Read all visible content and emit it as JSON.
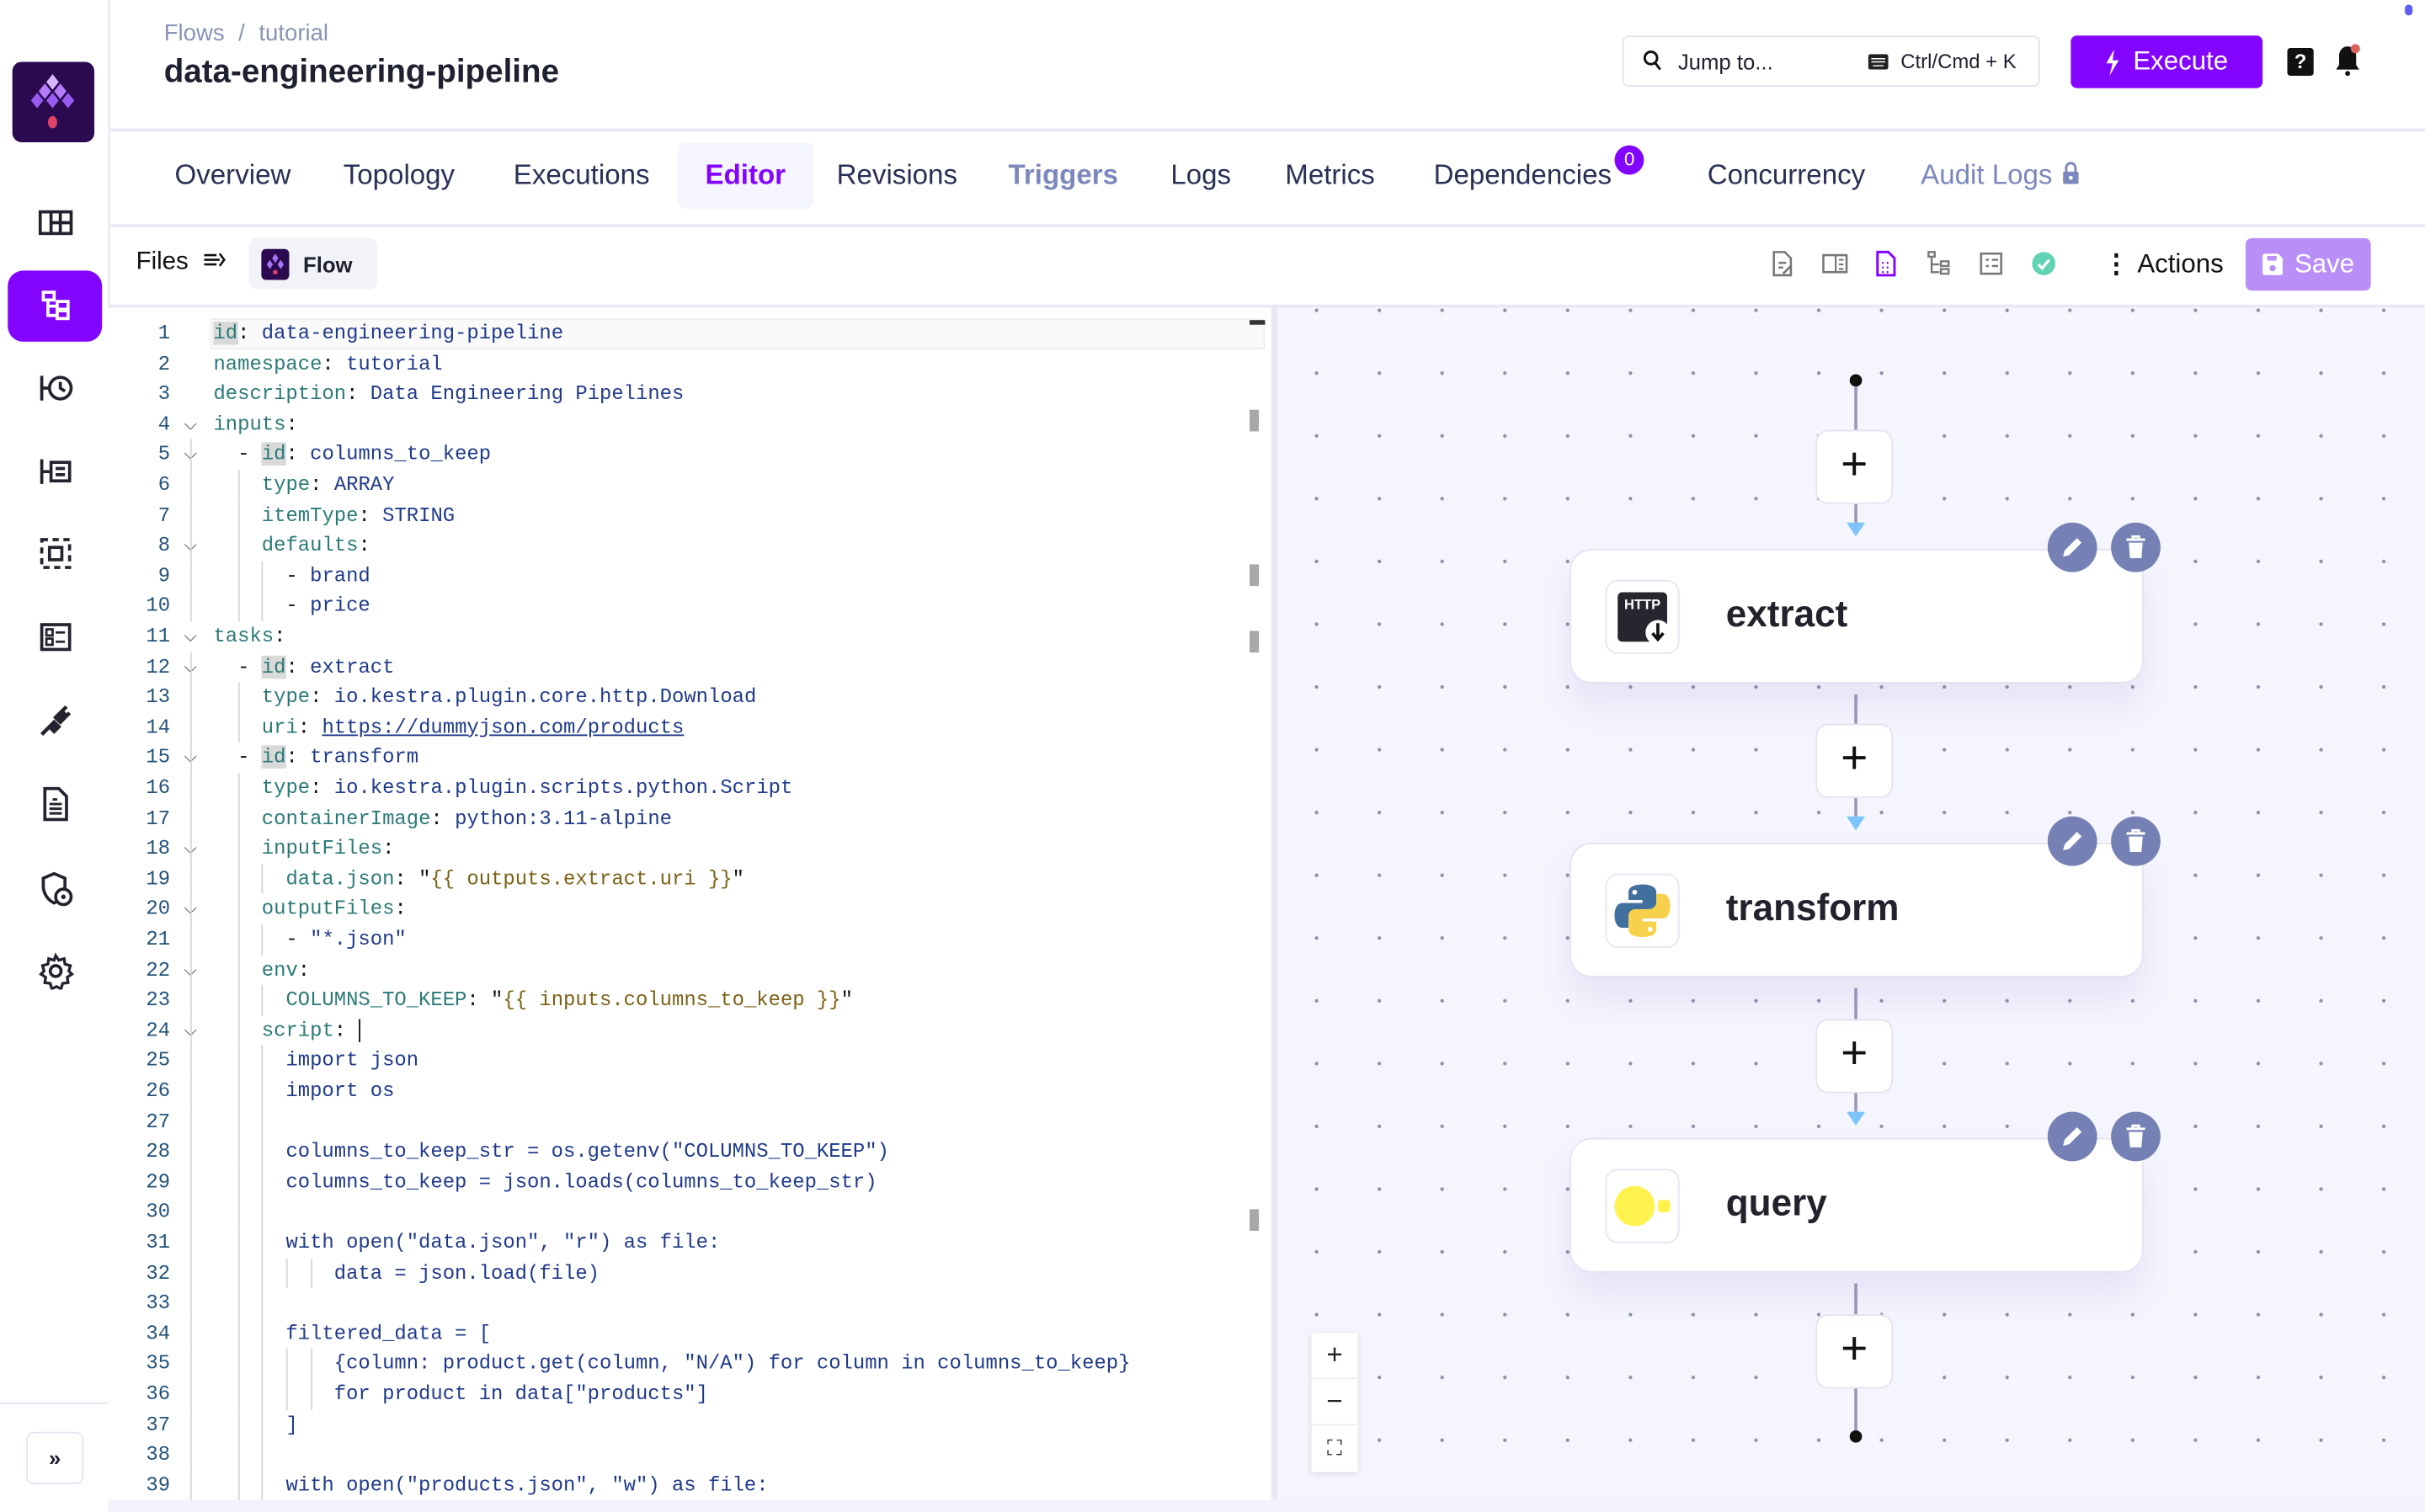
{
  "sidebar": {
    "logo": "kestra-logo",
    "items": [
      {
        "icon": "dashboard-icon",
        "active": false
      },
      {
        "icon": "flows-icon",
        "active": true
      },
      {
        "icon": "executions-icon",
        "active": false
      },
      {
        "icon": "logs-icon",
        "active": false
      },
      {
        "icon": "namespaces-icon",
        "active": false
      },
      {
        "icon": "templates-icon",
        "active": false
      },
      {
        "icon": "plugins-icon",
        "active": false
      },
      {
        "icon": "blueprints-icon",
        "active": false
      },
      {
        "icon": "administration-icon",
        "active": false
      },
      {
        "icon": "settings-icon",
        "active": false
      }
    ],
    "expand_label": "»"
  },
  "header": {
    "breadcrumb": [
      "Flows",
      "tutorial"
    ],
    "breadcrumb_sep": "/",
    "title": "data-engineering-pipeline",
    "jump_placeholder": "Jump to...",
    "jump_shortcut": "Ctrl/Cmd + K",
    "execute_label": "Execute",
    "help_label": "?"
  },
  "tabs": [
    {
      "label": "Overview",
      "state": "normal"
    },
    {
      "label": "Topology",
      "state": "normal"
    },
    {
      "label": "Executions",
      "state": "normal"
    },
    {
      "label": "Editor",
      "state": "active"
    },
    {
      "label": "Revisions",
      "state": "normal"
    },
    {
      "label": "Triggers",
      "state": "muted"
    },
    {
      "label": "Logs",
      "state": "normal"
    },
    {
      "label": "Metrics",
      "state": "normal"
    },
    {
      "label": "Dependencies",
      "state": "normal",
      "badge": "0"
    },
    {
      "label": "Concurrency",
      "state": "normal"
    },
    {
      "label": "Audit Logs",
      "state": "locked"
    }
  ],
  "toolbar": {
    "files_label": "Files",
    "file_tab": "Flow",
    "view_icons": [
      "source-edit-icon",
      "split-view-icon",
      "source-only-icon",
      "topology-view-icon",
      "documentation-view-icon",
      "valid-check-icon"
    ],
    "actions_label": "Actions",
    "save_label": "Save"
  },
  "editor": {
    "current_line": 1,
    "lines": [
      {
        "n": "1",
        "fold": false,
        "t": [
          [
            "kh",
            "id"
          ],
          [
            "p",
            ": "
          ],
          [
            "v",
            "data-engineering-pipeline"
          ]
        ]
      },
      {
        "n": "2",
        "fold": false,
        "t": [
          [
            "k",
            "namespace"
          ],
          [
            "p",
            ": "
          ],
          [
            "v",
            "tutorial"
          ]
        ]
      },
      {
        "n": "3",
        "fold": false,
        "t": [
          [
            "k",
            "description"
          ],
          [
            "p",
            ": "
          ],
          [
            "v",
            "Data Engineering Pipelines"
          ]
        ]
      },
      {
        "n": "4",
        "fold": true,
        "t": [
          [
            "k",
            "inputs"
          ],
          [
            "p",
            ":"
          ]
        ]
      },
      {
        "n": "5",
        "fold": true,
        "t": [
          [
            "p",
            "  - "
          ],
          [
            "kh",
            "id"
          ],
          [
            "p",
            ": "
          ],
          [
            "v",
            "columns_to_keep"
          ]
        ]
      },
      {
        "n": "6",
        "fold": false,
        "t": [
          [
            "p",
            "    "
          ],
          [
            "k",
            "type"
          ],
          [
            "p",
            ": "
          ],
          [
            "v",
            "ARRAY"
          ]
        ]
      },
      {
        "n": "7",
        "fold": false,
        "t": [
          [
            "p",
            "    "
          ],
          [
            "k",
            "itemType"
          ],
          [
            "p",
            ": "
          ],
          [
            "v",
            "STRING"
          ]
        ]
      },
      {
        "n": "8",
        "fold": true,
        "t": [
          [
            "p",
            "    "
          ],
          [
            "k",
            "defaults"
          ],
          [
            "p",
            ":"
          ]
        ]
      },
      {
        "n": "9",
        "fold": false,
        "t": [
          [
            "p",
            "      - "
          ],
          [
            "v",
            "brand"
          ]
        ]
      },
      {
        "n": "10",
        "fold": false,
        "t": [
          [
            "p",
            "      - "
          ],
          [
            "v",
            "price"
          ]
        ]
      },
      {
        "n": "11",
        "fold": true,
        "t": [
          [
            "k",
            "tasks"
          ],
          [
            "p",
            ":"
          ]
        ]
      },
      {
        "n": "12",
        "fold": true,
        "t": [
          [
            "p",
            "  - "
          ],
          [
            "kh",
            "id"
          ],
          [
            "p",
            ": "
          ],
          [
            "v",
            "extract"
          ]
        ]
      },
      {
        "n": "13",
        "fold": false,
        "t": [
          [
            "p",
            "    "
          ],
          [
            "k",
            "type"
          ],
          [
            "p",
            ": "
          ],
          [
            "v",
            "io.kestra.plugin.core.http.Download"
          ]
        ]
      },
      {
        "n": "14",
        "fold": false,
        "t": [
          [
            "p",
            "    "
          ],
          [
            "k",
            "uri"
          ],
          [
            "p",
            ": "
          ],
          [
            "u",
            "https://dummyjson.com/products"
          ]
        ]
      },
      {
        "n": "15",
        "fold": true,
        "t": [
          [
            "p",
            "  - "
          ],
          [
            "kh",
            "id"
          ],
          [
            "p",
            ": "
          ],
          [
            "v",
            "transform"
          ]
        ]
      },
      {
        "n": "16",
        "fold": false,
        "t": [
          [
            "p",
            "    "
          ],
          [
            "k",
            "type"
          ],
          [
            "p",
            ": "
          ],
          [
            "v",
            "io.kestra.plugin.scripts.python.Script"
          ]
        ]
      },
      {
        "n": "17",
        "fold": false,
        "t": [
          [
            "p",
            "    "
          ],
          [
            "k",
            "containerImage"
          ],
          [
            "p",
            ": "
          ],
          [
            "v",
            "python:3.11-alpine"
          ]
        ]
      },
      {
        "n": "18",
        "fold": true,
        "t": [
          [
            "p",
            "    "
          ],
          [
            "k",
            "inputFiles"
          ],
          [
            "p",
            ":"
          ]
        ]
      },
      {
        "n": "19",
        "fold": false,
        "t": [
          [
            "p",
            "      "
          ],
          [
            "k",
            "data.json"
          ],
          [
            "p",
            ": \""
          ],
          [
            "s",
            "{{ outputs.extract.uri }}"
          ],
          [
            "p",
            "\""
          ]
        ]
      },
      {
        "n": "20",
        "fold": true,
        "t": [
          [
            "p",
            "    "
          ],
          [
            "k",
            "outputFiles"
          ],
          [
            "p",
            ":"
          ]
        ]
      },
      {
        "n": "21",
        "fold": false,
        "t": [
          [
            "p",
            "      - "
          ],
          [
            "v",
            "\"*.json\""
          ]
        ]
      },
      {
        "n": "22",
        "fold": true,
        "t": [
          [
            "p",
            "    "
          ],
          [
            "k",
            "env"
          ],
          [
            "p",
            ":"
          ]
        ]
      },
      {
        "n": "23",
        "fold": false,
        "t": [
          [
            "p",
            "      "
          ],
          [
            "k",
            "COLUMNS_TO_KEEP"
          ],
          [
            "p",
            ": \""
          ],
          [
            "s",
            "{{ inputs.columns_to_keep }}"
          ],
          [
            "p",
            "\""
          ]
        ]
      },
      {
        "n": "24",
        "fold": true,
        "t": [
          [
            "p",
            "    "
          ],
          [
            "k",
            "script"
          ],
          [
            "p",
            ": "
          ],
          [
            "cur",
            "|"
          ]
        ]
      },
      {
        "n": "25",
        "fold": false,
        "t": [
          [
            "p",
            "      "
          ],
          [
            "c",
            "import json"
          ]
        ]
      },
      {
        "n": "26",
        "fold": false,
        "t": [
          [
            "p",
            "      "
          ],
          [
            "c",
            "import os"
          ]
        ]
      },
      {
        "n": "27",
        "fold": false,
        "t": []
      },
      {
        "n": "28",
        "fold": false,
        "t": [
          [
            "p",
            "      "
          ],
          [
            "c",
            "columns_to_keep_str = os.getenv(\"COLUMNS_TO_KEEP\")"
          ]
        ]
      },
      {
        "n": "29",
        "fold": false,
        "t": [
          [
            "p",
            "      "
          ],
          [
            "c",
            "columns_to_keep = json.loads(columns_to_keep_str)"
          ]
        ]
      },
      {
        "n": "30",
        "fold": false,
        "t": []
      },
      {
        "n": "31",
        "fold": false,
        "t": [
          [
            "p",
            "      "
          ],
          [
            "c",
            "with open(\"data.json\", \"r\") as file:"
          ]
        ]
      },
      {
        "n": "32",
        "fold": false,
        "t": [
          [
            "p",
            "          "
          ],
          [
            "c",
            "data = json.load(file)"
          ]
        ]
      },
      {
        "n": "33",
        "fold": false,
        "t": []
      },
      {
        "n": "34",
        "fold": false,
        "t": [
          [
            "p",
            "      "
          ],
          [
            "c",
            "filtered_data = ["
          ]
        ]
      },
      {
        "n": "35",
        "fold": false,
        "t": [
          [
            "p",
            "          "
          ],
          [
            "c",
            "{column: product.get(column, \"N/A\") for column in columns_to_keep}"
          ]
        ]
      },
      {
        "n": "36",
        "fold": false,
        "t": [
          [
            "p",
            "          "
          ],
          [
            "c",
            "for product in data[\"products\"]"
          ]
        ]
      },
      {
        "n": "37",
        "fold": false,
        "t": [
          [
            "p",
            "      "
          ],
          [
            "c",
            "]"
          ]
        ]
      },
      {
        "n": "38",
        "fold": false,
        "t": []
      },
      {
        "n": "39",
        "fold": false,
        "t": [
          [
            "p",
            "      "
          ],
          [
            "c",
            "with open(\"products.json\", \"w\") as file:"
          ]
        ]
      }
    ]
  },
  "topology": {
    "nodes": [
      {
        "label": "extract",
        "icon": "http-download-icon"
      },
      {
        "label": "transform",
        "icon": "python-icon"
      },
      {
        "label": "query",
        "icon": "duckdb-icon"
      }
    ],
    "add_label": "+",
    "zoom_controls": [
      "+",
      "−",
      "⛶"
    ],
    "colors": {
      "accent": "#8405ff",
      "node_action": "#7580b4",
      "edge_arrow": "#7cc4fa"
    }
  }
}
